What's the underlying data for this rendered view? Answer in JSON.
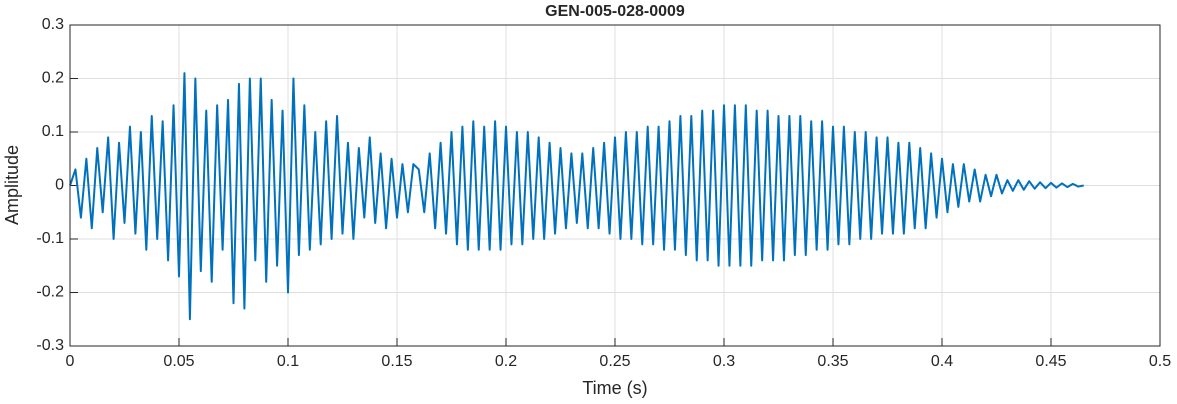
{
  "chart_data": {
    "type": "line",
    "title": "GEN-005-028-0009",
    "xlabel": "Time (s)",
    "ylabel": "Amplitude",
    "color": "#0072bd",
    "grid": true,
    "xlim": [
      0,
      0.5
    ],
    "xticks": [
      0,
      0.05,
      0.1,
      0.15,
      0.2,
      0.25,
      0.3,
      0.35,
      0.4,
      0.45,
      0.5
    ],
    "ylim": [
      -0.3,
      0.3
    ],
    "yticks": [
      -0.3,
      -0.2,
      -0.1,
      0,
      0.1,
      0.2,
      0.3
    ],
    "x": [
      0,
      0.0025,
      0.005,
      0.0075,
      0.01,
      0.0125,
      0.015,
      0.0175,
      0.02,
      0.0225,
      0.025,
      0.0275,
      0.03,
      0.0325,
      0.035,
      0.0375,
      0.04,
      0.0425,
      0.045,
      0.0475,
      0.05,
      0.0525,
      0.055,
      0.0575,
      0.06,
      0.0625,
      0.065,
      0.0675,
      0.07,
      0.0725,
      0.075,
      0.0775,
      0.08,
      0.0825,
      0.085,
      0.0875,
      0.09,
      0.0925,
      0.095,
      0.0975,
      0.1,
      0.1025,
      0.105,
      0.1075,
      0.11,
      0.1125,
      0.115,
      0.1175,
      0.12,
      0.1225,
      0.125,
      0.1275,
      0.13,
      0.1325,
      0.135,
      0.1375,
      0.14,
      0.1425,
      0.145,
      0.1475,
      0.15,
      0.1525,
      0.155,
      0.1575,
      0.16,
      0.1625,
      0.165,
      0.1675,
      0.17,
      0.1725,
      0.175,
      0.1775,
      0.18,
      0.1825,
      0.185,
      0.1875,
      0.19,
      0.1925,
      0.195,
      0.1975,
      0.2,
      0.2025,
      0.205,
      0.2075,
      0.21,
      0.2125,
      0.215,
      0.2175,
      0.22,
      0.2225,
      0.225,
      0.2275,
      0.23,
      0.2325,
      0.235,
      0.2375,
      0.24,
      0.2425,
      0.245,
      0.2475,
      0.25,
      0.2525,
      0.255,
      0.2575,
      0.26,
      0.2625,
      0.265,
      0.2675,
      0.27,
      0.2725,
      0.275,
      0.2775,
      0.28,
      0.2825,
      0.285,
      0.2875,
      0.29,
      0.2925,
      0.295,
      0.2975,
      0.3,
      0.3025,
      0.305,
      0.3075,
      0.31,
      0.3125,
      0.315,
      0.3175,
      0.32,
      0.3225,
      0.325,
      0.3275,
      0.33,
      0.3325,
      0.335,
      0.3375,
      0.34,
      0.3425,
      0.345,
      0.3475,
      0.35,
      0.3525,
      0.355,
      0.3575,
      0.36,
      0.3625,
      0.365,
      0.3675,
      0.37,
      0.3725,
      0.375,
      0.3775,
      0.38,
      0.3825,
      0.385,
      0.3875,
      0.39,
      0.3925,
      0.395,
      0.3975,
      0.4,
      0.4025,
      0.405,
      0.4075,
      0.41,
      0.4125,
      0.415,
      0.4175,
      0.42,
      0.4225,
      0.425,
      0.4275,
      0.43,
      0.4325,
      0.435,
      0.4375,
      0.44,
      0.4425,
      0.445,
      0.4475,
      0.45,
      0.4525,
      0.455,
      0.4575,
      0.46,
      0.4625,
      0.465
    ],
    "values": [
      0,
      0.03,
      -0.06,
      0.05,
      -0.08,
      0.07,
      -0.05,
      0.09,
      -0.1,
      0.08,
      -0.07,
      0.11,
      -0.09,
      0.1,
      -0.12,
      0.13,
      -0.1,
      0.12,
      -0.14,
      0.15,
      -0.17,
      0.21,
      -0.25,
      0.2,
      -0.16,
      0.14,
      -0.18,
      0.15,
      -0.12,
      0.16,
      -0.22,
      0.19,
      -0.23,
      0.2,
      -0.14,
      0.2,
      -0.18,
      0.16,
      -0.15,
      0.14,
      -0.2,
      0.2,
      -0.13,
      0.15,
      -0.12,
      0.1,
      -0.11,
      0.12,
      -0.1,
      0.13,
      -0.09,
      0.08,
      -0.1,
      0.07,
      -0.06,
      0.09,
      -0.07,
      0.06,
      -0.08,
      0.05,
      -0.06,
      0.04,
      -0.05,
      0.04,
      0.03,
      -0.05,
      0.06,
      -0.08,
      0.08,
      -0.09,
      0.1,
      -0.11,
      0.11,
      -0.12,
      0.12,
      -0.12,
      0.11,
      -0.12,
      0.12,
      -0.12,
      0.11,
      -0.11,
      0.1,
      -0.11,
      0.1,
      -0.1,
      0.09,
      -0.1,
      0.08,
      -0.09,
      0.07,
      -0.08,
      0.06,
      -0.07,
      0.06,
      -0.08,
      0.07,
      -0.08,
      0.08,
      -0.09,
      0.09,
      -0.1,
      0.1,
      -0.1,
      0.1,
      -0.11,
      0.11,
      -0.11,
      0.11,
      -0.12,
      0.12,
      -0.12,
      0.13,
      -0.13,
      0.13,
      -0.14,
      0.14,
      -0.14,
      0.14,
      -0.15,
      0.15,
      -0.15,
      0.15,
      -0.15,
      0.15,
      -0.15,
      0.14,
      -0.14,
      0.14,
      -0.14,
      0.13,
      -0.14,
      0.13,
      -0.13,
      0.13,
      -0.13,
      0.12,
      -0.12,
      0.12,
      -0.12,
      0.11,
      -0.11,
      0.11,
      -0.11,
      0.1,
      -0.1,
      0.1,
      -0.1,
      0.09,
      -0.09,
      0.09,
      -0.09,
      0.08,
      -0.09,
      0.08,
      -0.08,
      0.07,
      -0.08,
      0.06,
      -0.06,
      0.05,
      -0.05,
      0.04,
      -0.04,
      0.04,
      -0.03,
      0.03,
      -0.03,
      0.02,
      -0.02,
      0.02,
      -0.015,
      0.01,
      -0.01,
      0.01,
      -0.008,
      0.008,
      -0.006,
      0.006,
      -0.005,
      0.005,
      -0.004,
      0.004,
      -0.003,
      0.003,
      -0.002,
      0
    ]
  }
}
